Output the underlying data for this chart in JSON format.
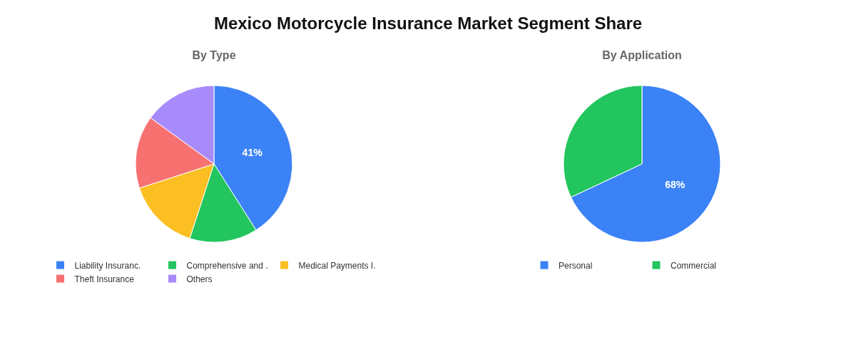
{
  "chart_data": [
    {
      "type": "pie",
      "title": "Mexico Motorcycle Insurance Market Segment Share",
      "subtitle": "By Type",
      "categories": [
        "Liability Insuranc.",
        "Comprehensive and .",
        "Medical Payments I.",
        "Theft Insurance",
        "Others"
      ],
      "values": [
        41,
        14,
        15,
        15,
        15
      ],
      "colors": [
        "#3b82f6",
        "#22c55e",
        "#fbbf24",
        "#f87171",
        "#a78bfa"
      ],
      "value_labels": [
        "41%",
        null,
        null,
        null,
        null
      ],
      "legend": "bottom"
    },
    {
      "type": "pie",
      "subtitle": "By Application",
      "categories": [
        "Personal",
        "Commercial"
      ],
      "values": [
        68,
        32
      ],
      "colors": [
        "#3b82f6",
        "#22c55e"
      ],
      "value_labels": [
        "68%",
        null
      ],
      "legend": "bottom"
    }
  ]
}
